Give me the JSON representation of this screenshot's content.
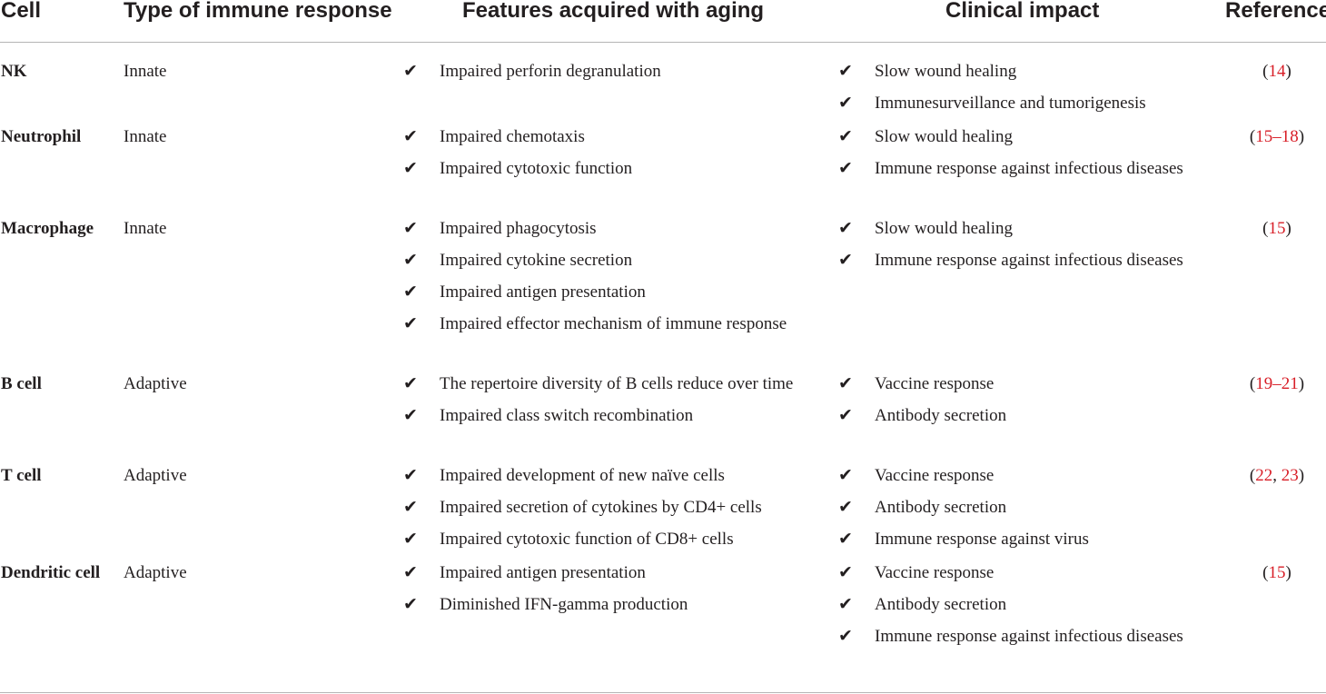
{
  "headers": {
    "cell": "Cell",
    "type": "Type of immune response",
    "features": "Features acquired with aging",
    "impact": "Clinical impact",
    "reference": "Reference"
  },
  "rows": [
    {
      "cell": "NK",
      "type": "Innate",
      "features": [
        "Impaired perforin degranulation"
      ],
      "impact": [
        "Slow wound healing",
        "Immunesurveillance and tumorigenesis"
      ],
      "ref": {
        "open": "(",
        "parts": [
          "14"
        ],
        "seps": [],
        "close": ")"
      }
    },
    {
      "cell": "Neutrophil",
      "type": "Innate",
      "features": [
        "Impaired chemotaxis",
        "Impaired cytotoxic function"
      ],
      "impact": [
        "Slow would healing",
        "Immune response against infectious diseases"
      ],
      "ref": {
        "open": "(",
        "parts": [
          "15–18"
        ],
        "seps": [],
        "close": ")"
      }
    },
    {
      "cell": "Macrophage",
      "type": "Innate",
      "features": [
        "Impaired phagocytosis",
        "Impaired cytokine secretion",
        "Impaired antigen presentation",
        "Impaired effector mechanism of immune response"
      ],
      "impact": [
        "Slow would healing",
        "Immune response against infectious diseases"
      ],
      "ref": {
        "open": "(",
        "parts": [
          "15"
        ],
        "seps": [],
        "close": ")"
      }
    },
    {
      "cell": "B cell",
      "type": "Adaptive",
      "features": [
        "The repertoire diversity of B cells reduce over time",
        "Impaired class switch recombination"
      ],
      "impact": [
        "Vaccine response",
        "Antibody secretion"
      ],
      "ref": {
        "open": "(",
        "parts": [
          "19–21"
        ],
        "seps": [],
        "close": ")"
      }
    },
    {
      "cell": "T cell",
      "type": "Adaptive",
      "features": [
        "Impaired development of new naïve cells",
        "Impaired secretion of cytokines by CD4+ cells",
        "Impaired cytotoxic function of CD8+ cells"
      ],
      "impact": [
        "Vaccine response",
        "Antibody secretion",
        "Immune response against virus"
      ],
      "ref": {
        "open": "(",
        "parts": [
          "22",
          "23"
        ],
        "seps": [
          ", "
        ],
        "close": ")"
      }
    },
    {
      "cell": "Dendritic cell",
      "type": "Adaptive",
      "features": [
        "Impaired antigen presentation",
        "Diminished IFN-gamma production"
      ],
      "impact": [
        "Vaccine response",
        "Antibody secretion",
        "Immune response against infectious diseases"
      ],
      "ref": {
        "open": "(",
        "parts": [
          "15"
        ],
        "seps": [],
        "close": ")"
      }
    }
  ],
  "check_mark": "✔",
  "check_icon": "check-mark-icon",
  "colors": {
    "text": "#231f20",
    "reference_link": "#d81e27",
    "rule": "#b5b5b5"
  }
}
